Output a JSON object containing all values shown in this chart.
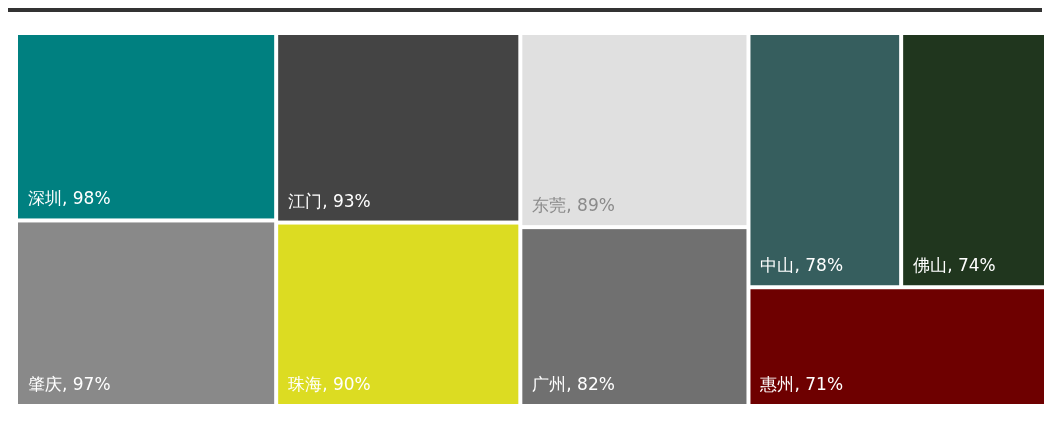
{
  "chart_data": {
    "type": "other",
    "categories": [
      "深圳",
      "肇庆",
      "江门",
      "珠海",
      "东莞",
      "广州",
      "中山",
      "佛山",
      "惠州"
    ],
    "values": [
      98,
      97,
      93,
      90,
      89,
      82,
      78,
      74,
      71
    ],
    "value_labels": [
      ", 98%",
      ", 97%",
      ", 93%",
      ", 90%",
      ", 89%",
      ", 82%",
      ", 78%",
      ", 74%",
      ", 71%"
    ],
    "colors": [
      "#008080",
      "#898989",
      "#444444",
      "#dcdc22",
      "#e0e0e0",
      "#707070",
      "#365e5e",
      "#20361e",
      "#6e0000"
    ]
  }
}
